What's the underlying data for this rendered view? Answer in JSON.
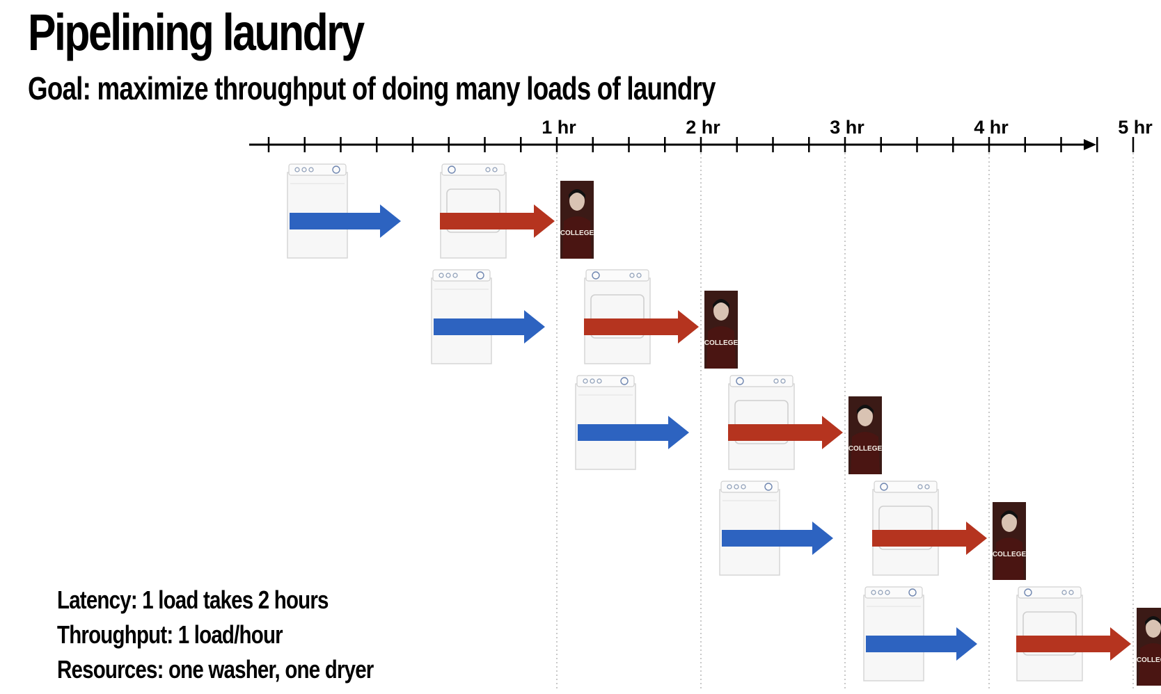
{
  "title": "Pipelining laundry",
  "subtitle": "Goal: maximize throughput of doing many loads of laundry",
  "timeline": {
    "tick_labels": [
      {
        "hour": 1,
        "label": "1 hr"
      },
      {
        "hour": 2,
        "label": "2 hr"
      },
      {
        "hour": 3,
        "label": "3 hr"
      },
      {
        "hour": 4,
        "label": "4 hr"
      },
      {
        "hour": 5,
        "label": "5 hr"
      }
    ],
    "ticks_per_hour": 4,
    "range_hours": [
      -1,
      5.75
    ]
  },
  "loads": [
    {
      "start_hour": 0
    },
    {
      "start_hour": 1
    },
    {
      "start_hour": 2
    },
    {
      "start_hour": 3
    },
    {
      "start_hour": 4
    }
  ],
  "stage_durations_hours": {
    "wash": 1,
    "dry": 1
  },
  "person_shirt_text": "COLLEGE",
  "colors": {
    "wash_arrow": "#2d63c0",
    "dry_arrow": "#b5341f",
    "axis": "#000000",
    "gridline": "#aaaaaa"
  },
  "stats": [
    "Latency: 1 load takes 2 hours",
    "Throughput: 1 load/hour",
    "Resources: one washer, one dryer"
  ]
}
